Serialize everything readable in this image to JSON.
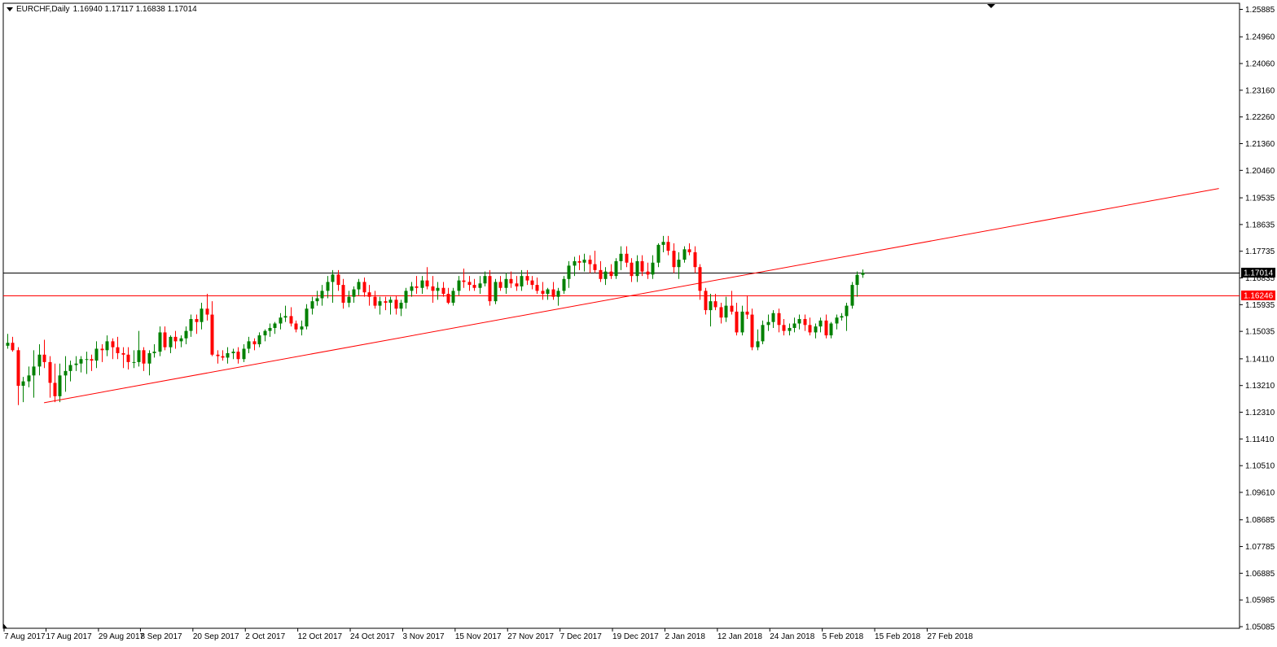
{
  "header": {
    "symbol_timeframe": "EURCHF,Daily",
    "ohlc": "1.16940 1.17117 1.16838 1.17014"
  },
  "colors": {
    "bull": "#008000",
    "bear": "#ff0000",
    "trendline": "#ff0000",
    "current_price_line": "#000000",
    "support_line": "#ff0000",
    "background": "#ffffff",
    "axis": "#000000"
  },
  "chart_data": {
    "type": "candlestick",
    "symbol": "EURCHF",
    "timeframe": "Daily",
    "ylim": [
      1.05085,
      1.25885
    ],
    "y_ticks": [
      "1.25885",
      "1.24960",
      "1.24060",
      "1.23160",
      "1.22260",
      "1.21360",
      "1.20460",
      "1.19535",
      "1.18635",
      "1.17735",
      "1.16835",
      "1.15935",
      "1.15035",
      "1.14110",
      "1.13210",
      "1.12310",
      "1.11410",
      "1.10510",
      "1.09610",
      "1.08685",
      "1.07785",
      "1.06885",
      "1.05985",
      "1.05085"
    ],
    "x_ticks": [
      {
        "label": "7 Aug 2017",
        "bar": 0
      },
      {
        "label": "17 Aug 2017",
        "bar": 8
      },
      {
        "label": "29 Aug 2017",
        "bar": 18
      },
      {
        "label": "8 Sep 2017",
        "bar": 26
      },
      {
        "label": "20 Sep 2017",
        "bar": 36
      },
      {
        "label": "2 Oct 2017",
        "bar": 46
      },
      {
        "label": "12 Oct 2017",
        "bar": 56
      },
      {
        "label": "24 Oct 2017",
        "bar": 66
      },
      {
        "label": "3 Nov 2017",
        "bar": 76
      },
      {
        "label": "15 Nov 2017",
        "bar": 86
      },
      {
        "label": "27 Nov 2017",
        "bar": 96
      },
      {
        "label": "7 Dec 2017",
        "bar": 106
      },
      {
        "label": "19 Dec 2017",
        "bar": 116
      },
      {
        "label": "2 Jan 2018",
        "bar": 126
      },
      {
        "label": "12 Jan 2018",
        "bar": 136
      },
      {
        "label": "24 Jan 2018",
        "bar": 146
      },
      {
        "label": "5 Feb 2018",
        "bar": 156
      },
      {
        "label": "15 Feb 2018",
        "bar": 166
      },
      {
        "label": "27 Feb 2018",
        "bar": 176
      }
    ],
    "price_labels": [
      {
        "value": 1.17014,
        "text": "1.17014",
        "style": "current"
      },
      {
        "value": 1.16246,
        "text": "1.16246",
        "style": "support"
      }
    ],
    "trendline": {
      "from": {
        "bar": 7,
        "price": 1.1263
      },
      "to": {
        "bar": 231,
        "price": 1.1985
      }
    },
    "candles": [
      [
        1.1455,
        1.1495,
        1.1445,
        1.1465
      ],
      [
        1.1465,
        1.1485,
        1.1435,
        1.144
      ],
      [
        1.144,
        1.145,
        1.1255,
        1.132
      ],
      [
        1.132,
        1.135,
        1.1265,
        1.1335
      ],
      [
        1.1335,
        1.1385,
        1.1315,
        1.1355
      ],
      [
        1.1355,
        1.144,
        1.128,
        1.1385
      ],
      [
        1.1385,
        1.146,
        1.1355,
        1.1425
      ],
      [
        1.1425,
        1.1475,
        1.138,
        1.14
      ],
      [
        1.14,
        1.142,
        1.128,
        1.133
      ],
      [
        1.133,
        1.1395,
        1.1265,
        1.1285
      ],
      [
        1.1285,
        1.1395,
        1.1265,
        1.1355
      ],
      [
        1.1355,
        1.142,
        1.13,
        1.137
      ],
      [
        1.137,
        1.1405,
        1.1335,
        1.139
      ],
      [
        1.139,
        1.142,
        1.137,
        1.1395
      ],
      [
        1.1395,
        1.142,
        1.1365,
        1.141
      ],
      [
        1.141,
        1.1435,
        1.136,
        1.141
      ],
      [
        1.141,
        1.1425,
        1.137,
        1.1405
      ],
      [
        1.1405,
        1.147,
        1.138,
        1.1445
      ],
      [
        1.1445,
        1.146,
        1.14,
        1.144
      ],
      [
        1.144,
        1.149,
        1.142,
        1.147
      ],
      [
        1.147,
        1.148,
        1.141,
        1.145
      ],
      [
        1.145,
        1.1485,
        1.141,
        1.143
      ],
      [
        1.143,
        1.145,
        1.138,
        1.1425
      ],
      [
        1.1425,
        1.145,
        1.1375,
        1.14
      ],
      [
        1.14,
        1.144,
        1.138,
        1.14
      ],
      [
        1.14,
        1.1505,
        1.1385,
        1.144
      ],
      [
        1.144,
        1.145,
        1.137,
        1.1395
      ],
      [
        1.1395,
        1.144,
        1.1355,
        1.143
      ],
      [
        1.143,
        1.146,
        1.1415,
        1.1435
      ],
      [
        1.1435,
        1.152,
        1.142,
        1.15
      ],
      [
        1.15,
        1.152,
        1.144,
        1.145
      ],
      [
        1.145,
        1.149,
        1.143,
        1.1485
      ],
      [
        1.1485,
        1.1505,
        1.1445,
        1.147
      ],
      [
        1.147,
        1.149,
        1.145,
        1.148
      ],
      [
        1.148,
        1.152,
        1.146,
        1.1505
      ],
      [
        1.1505,
        1.156,
        1.1485,
        1.1545
      ],
      [
        1.1545,
        1.156,
        1.1495,
        1.1535
      ],
      [
        1.1535,
        1.16,
        1.151,
        1.158
      ],
      [
        1.158,
        1.163,
        1.154,
        1.156
      ],
      [
        1.156,
        1.1605,
        1.142,
        1.1425
      ],
      [
        1.1425,
        1.144,
        1.1395,
        1.142
      ],
      [
        1.142,
        1.144,
        1.1405,
        1.1415
      ],
      [
        1.1415,
        1.145,
        1.1395,
        1.143
      ],
      [
        1.143,
        1.1445,
        1.141,
        1.1435
      ],
      [
        1.1435,
        1.145,
        1.1395,
        1.141
      ],
      [
        1.141,
        1.146,
        1.14,
        1.1445
      ],
      [
        1.1445,
        1.1485,
        1.143,
        1.147
      ],
      [
        1.147,
        1.148,
        1.144,
        1.146
      ],
      [
        1.146,
        1.15,
        1.145,
        1.149
      ],
      [
        1.149,
        1.151,
        1.147,
        1.1505
      ],
      [
        1.1505,
        1.153,
        1.1485,
        1.1515
      ],
      [
        1.1515,
        1.1535,
        1.1495,
        1.153
      ],
      [
        1.153,
        1.1565,
        1.151,
        1.155
      ],
      [
        1.155,
        1.159,
        1.1535,
        1.1555
      ],
      [
        1.1555,
        1.1585,
        1.152,
        1.153
      ],
      [
        1.153,
        1.154,
        1.15,
        1.151
      ],
      [
        1.151,
        1.154,
        1.149,
        1.152
      ],
      [
        1.152,
        1.1595,
        1.151,
        1.158
      ],
      [
        1.158,
        1.162,
        1.156,
        1.1605
      ],
      [
        1.1605,
        1.164,
        1.159,
        1.1615
      ],
      [
        1.1615,
        1.166,
        1.159,
        1.164
      ],
      [
        1.164,
        1.169,
        1.1615,
        1.167
      ],
      [
        1.167,
        1.171,
        1.16,
        1.1695
      ],
      [
        1.1695,
        1.171,
        1.164,
        1.166
      ],
      [
        1.166,
        1.168,
        1.158,
        1.16
      ],
      [
        1.16,
        1.164,
        1.1585,
        1.162
      ],
      [
        1.162,
        1.1655,
        1.16,
        1.1645
      ],
      [
        1.1645,
        1.168,
        1.1625,
        1.167
      ],
      [
        1.167,
        1.1685,
        1.162,
        1.1635
      ],
      [
        1.1635,
        1.166,
        1.159,
        1.162
      ],
      [
        1.162,
        1.164,
        1.158,
        1.159
      ],
      [
        1.159,
        1.162,
        1.156,
        1.1605
      ],
      [
        1.1605,
        1.162,
        1.1575,
        1.16
      ],
      [
        1.16,
        1.162,
        1.156,
        1.161
      ],
      [
        1.161,
        1.1625,
        1.156,
        1.158
      ],
      [
        1.158,
        1.161,
        1.1555,
        1.16
      ],
      [
        1.16,
        1.165,
        1.158,
        1.164
      ],
      [
        1.164,
        1.167,
        1.162,
        1.1655
      ],
      [
        1.1655,
        1.169,
        1.163,
        1.165
      ],
      [
        1.165,
        1.169,
        1.163,
        1.1675
      ],
      [
        1.1675,
        1.172,
        1.1645,
        1.1655
      ],
      [
        1.1655,
        1.169,
        1.16,
        1.164
      ],
      [
        1.164,
        1.167,
        1.161,
        1.165
      ],
      [
        1.165,
        1.167,
        1.162,
        1.163
      ],
      [
        1.163,
        1.165,
        1.1595,
        1.16
      ],
      [
        1.16,
        1.165,
        1.159,
        1.164
      ],
      [
        1.164,
        1.169,
        1.1625,
        1.1675
      ],
      [
        1.1675,
        1.1715,
        1.165,
        1.167
      ],
      [
        1.167,
        1.169,
        1.164,
        1.166
      ],
      [
        1.166,
        1.168,
        1.164,
        1.165
      ],
      [
        1.165,
        1.169,
        1.163,
        1.1665
      ],
      [
        1.1665,
        1.1705,
        1.1655,
        1.169
      ],
      [
        1.169,
        1.171,
        1.159,
        1.1605
      ],
      [
        1.1605,
        1.168,
        1.1595,
        1.167
      ],
      [
        1.167,
        1.169,
        1.164,
        1.165
      ],
      [
        1.165,
        1.17,
        1.163,
        1.168
      ],
      [
        1.168,
        1.1705,
        1.165,
        1.1665
      ],
      [
        1.1665,
        1.169,
        1.164,
        1.1655
      ],
      [
        1.1655,
        1.171,
        1.164,
        1.169
      ],
      [
        1.169,
        1.171,
        1.166,
        1.1675
      ],
      [
        1.1675,
        1.169,
        1.1645,
        1.166
      ],
      [
        1.166,
        1.1685,
        1.163,
        1.164
      ],
      [
        1.164,
        1.167,
        1.161,
        1.163
      ],
      [
        1.163,
        1.165,
        1.161,
        1.1645
      ],
      [
        1.1645,
        1.167,
        1.161,
        1.162
      ],
      [
        1.162,
        1.165,
        1.159,
        1.164
      ],
      [
        1.164,
        1.169,
        1.163,
        1.168
      ],
      [
        1.168,
        1.174,
        1.165,
        1.1725
      ],
      [
        1.1725,
        1.1755,
        1.169,
        1.174
      ],
      [
        1.174,
        1.176,
        1.171,
        1.1735
      ],
      [
        1.1735,
        1.1765,
        1.1705,
        1.1745
      ],
      [
        1.1745,
        1.176,
        1.17,
        1.173
      ],
      [
        1.173,
        1.1775,
        1.17,
        1.171
      ],
      [
        1.171,
        1.174,
        1.167,
        1.168
      ],
      [
        1.168,
        1.172,
        1.166,
        1.1705
      ],
      [
        1.1705,
        1.173,
        1.168,
        1.169
      ],
      [
        1.169,
        1.175,
        1.168,
        1.174
      ],
      [
        1.174,
        1.179,
        1.171,
        1.1765
      ],
      [
        1.1765,
        1.179,
        1.172,
        1.1735
      ],
      [
        1.1735,
        1.175,
        1.167,
        1.169
      ],
      [
        1.169,
        1.176,
        1.167,
        1.174
      ],
      [
        1.174,
        1.176,
        1.169,
        1.1705
      ],
      [
        1.1705,
        1.1735,
        1.168,
        1.1695
      ],
      [
        1.1695,
        1.176,
        1.168,
        1.1735
      ],
      [
        1.1735,
        1.18,
        1.172,
        1.1795
      ],
      [
        1.1795,
        1.1825,
        1.177,
        1.1805
      ],
      [
        1.1805,
        1.1825,
        1.176,
        1.1775
      ],
      [
        1.1775,
        1.18,
        1.17,
        1.172
      ],
      [
        1.172,
        1.177,
        1.168,
        1.1745
      ],
      [
        1.1745,
        1.179,
        1.1735,
        1.178
      ],
      [
        1.178,
        1.18,
        1.176,
        1.177
      ],
      [
        1.177,
        1.179,
        1.17,
        1.172
      ],
      [
        1.172,
        1.173,
        1.161,
        1.164
      ],
      [
        1.164,
        1.165,
        1.156,
        1.1575
      ],
      [
        1.1575,
        1.163,
        1.152,
        1.1605
      ],
      [
        1.1605,
        1.163,
        1.1575,
        1.1585
      ],
      [
        1.1585,
        1.16,
        1.153,
        1.155
      ],
      [
        1.155,
        1.162,
        1.1535,
        1.159
      ],
      [
        1.159,
        1.164,
        1.156,
        1.157
      ],
      [
        1.157,
        1.16,
        1.149,
        1.15
      ],
      [
        1.15,
        1.159,
        1.149,
        1.157
      ],
      [
        1.157,
        1.1625,
        1.1545,
        1.156
      ],
      [
        1.156,
        1.158,
        1.144,
        1.145
      ],
      [
        1.145,
        1.151,
        1.144,
        1.147
      ],
      [
        1.147,
        1.154,
        1.146,
        1.1525
      ],
      [
        1.1525,
        1.156,
        1.1505,
        1.1535
      ],
      [
        1.1535,
        1.1575,
        1.1515,
        1.1565
      ],
      [
        1.1565,
        1.158,
        1.15,
        1.1525
      ],
      [
        1.1525,
        1.1545,
        1.149,
        1.1505
      ],
      [
        1.1505,
        1.153,
        1.149,
        1.1515
      ],
      [
        1.1515,
        1.155,
        1.15,
        1.153
      ],
      [
        1.153,
        1.156,
        1.151,
        1.1545
      ],
      [
        1.1545,
        1.156,
        1.1505,
        1.1525
      ],
      [
        1.1525,
        1.155,
        1.149,
        1.15
      ],
      [
        1.15,
        1.153,
        1.148,
        1.152
      ],
      [
        1.152,
        1.155,
        1.15,
        1.154
      ],
      [
        1.154,
        1.156,
        1.148,
        1.149
      ],
      [
        1.149,
        1.1535,
        1.148,
        1.153
      ],
      [
        1.153,
        1.156,
        1.151,
        1.155
      ],
      [
        1.155,
        1.1565,
        1.154,
        1.1555
      ],
      [
        1.1555,
        1.16,
        1.1505,
        1.159
      ],
      [
        1.159,
        1.167,
        1.158,
        1.166
      ],
      [
        1.166,
        1.1705,
        1.162,
        1.1694
      ],
      [
        1.1694,
        1.1712,
        1.1684,
        1.1701
      ]
    ]
  }
}
